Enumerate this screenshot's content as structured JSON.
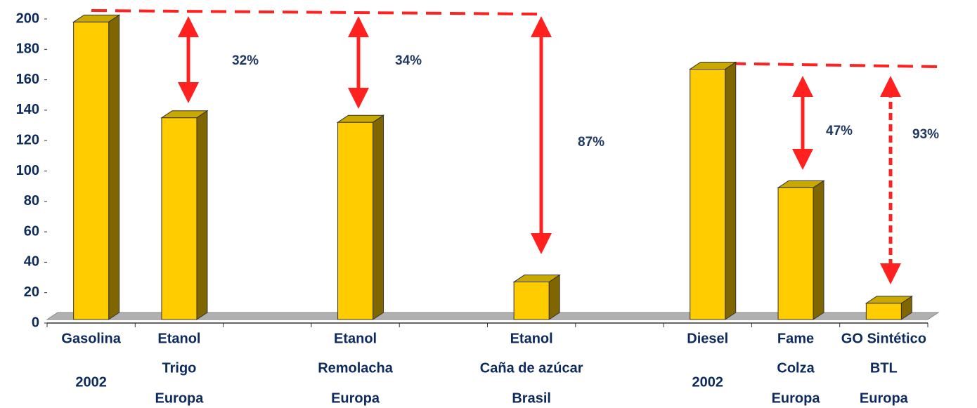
{
  "chart_data": {
    "type": "bar3d",
    "categories": [
      [
        "Gasolina",
        "2002"
      ],
      [
        "Etanol",
        "Trigo",
        "Europa"
      ],
      null,
      [
        "Etanol",
        "Remolacha",
        "Europa"
      ],
      null,
      [
        "Etanol",
        "Caña de azúcar",
        "Brasil"
      ],
      null,
      [
        "Diesel",
        "2002"
      ],
      [
        "Fame",
        "Colza",
        "Europa"
      ],
      [
        "GO Sintético",
        "BTL",
        "Europa"
      ]
    ],
    "values": [
      198,
      135,
      null,
      132,
      null,
      27,
      null,
      167,
      89,
      13
    ],
    "color": "#ffcc00",
    "ylim": [
      0,
      200
    ],
    "yticks": [
      0,
      20,
      40,
      60,
      80,
      100,
      120,
      140,
      160,
      180,
      200
    ],
    "annotations": [
      "32%",
      "34%",
      "87%",
      "47%",
      "93%"
    ]
  }
}
